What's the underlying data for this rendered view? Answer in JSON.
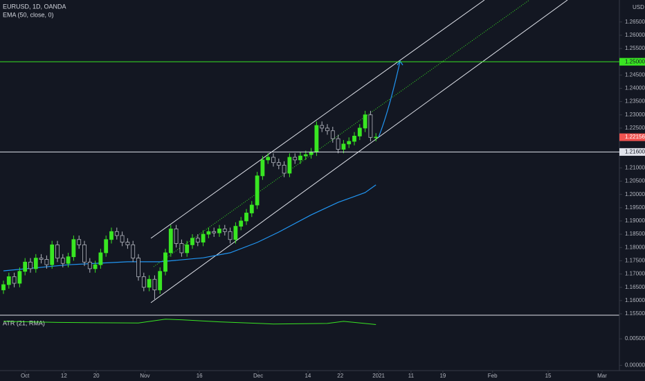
{
  "chart_data": {
    "type": "candlestick",
    "title": "EURUSD, 1D, OANDA",
    "currency": "USD",
    "up_color": "#39e622",
    "down_color": "#131722",
    "x": [
      0,
      1,
      2,
      3,
      4,
      5,
      6,
      7,
      8,
      9,
      10,
      11,
      12,
      13,
      14,
      15,
      16,
      17,
      18,
      19,
      20,
      21,
      22,
      23,
      24,
      25,
      26,
      27,
      28,
      29,
      30,
      31,
      32,
      33,
      34,
      35,
      36,
      37,
      38,
      39,
      40,
      41,
      42,
      43,
      44,
      45,
      46,
      47,
      48,
      49,
      50,
      51,
      52,
      53,
      54,
      55,
      56,
      57,
      58,
      59,
      60,
      61,
      62,
      63,
      64,
      65,
      66,
      67,
      68,
      69
    ],
    "open": [
      1.164,
      1.166,
      1.169,
      1.1665,
      1.171,
      1.1745,
      1.172,
      1.176,
      1.1755,
      1.1735,
      1.181,
      1.176,
      1.174,
      1.1765,
      1.183,
      1.181,
      1.1745,
      1.172,
      1.1735,
      1.178,
      1.183,
      1.186,
      1.1845,
      1.182,
      1.181,
      1.176,
      1.169,
      1.165,
      1.168,
      1.164,
      1.171,
      1.178,
      1.187,
      1.1815,
      1.178,
      1.181,
      1.1835,
      1.182,
      1.185,
      1.186,
      1.1855,
      1.187,
      1.186,
      1.183,
      1.188,
      1.19,
      1.193,
      1.196,
      1.207,
      1.213,
      1.214,
      1.212,
      1.211,
      1.208,
      1.214,
      1.213,
      1.2145,
      1.215,
      1.216,
      1.226,
      1.225,
      1.224,
      1.221,
      1.217,
      1.219,
      1.22,
      1.222,
      1.225,
      1.23,
      1.2215
    ],
    "high": [
      1.1675,
      1.1705,
      1.1705,
      1.1725,
      1.176,
      1.176,
      1.1775,
      1.1775,
      1.177,
      1.1825,
      1.1825,
      1.1775,
      1.178,
      1.1845,
      1.1845,
      1.1825,
      1.176,
      1.175,
      1.1795,
      1.1845,
      1.1875,
      1.1875,
      1.186,
      1.1835,
      1.1825,
      1.1775,
      1.1705,
      1.1695,
      1.1695,
      1.1725,
      1.1795,
      1.1885,
      1.1885,
      1.183,
      1.1825,
      1.185,
      1.185,
      1.1865,
      1.1875,
      1.1875,
      1.1885,
      1.1885,
      1.1875,
      1.1895,
      1.1915,
      1.1945,
      1.1975,
      1.2085,
      1.2145,
      1.2155,
      1.2155,
      1.2135,
      1.2125,
      1.2155,
      1.2155,
      1.216,
      1.2165,
      1.2175,
      1.2275,
      1.2275,
      1.2265,
      1.2255,
      1.2225,
      1.2205,
      1.2215,
      1.2235,
      1.2265,
      1.2315,
      1.2315,
      1.2231
    ],
    "low": [
      1.1625,
      1.1645,
      1.165,
      1.165,
      1.1695,
      1.1705,
      1.1705,
      1.174,
      1.172,
      1.172,
      1.1745,
      1.1725,
      1.1725,
      1.175,
      1.1795,
      1.173,
      1.1705,
      1.1705,
      1.172,
      1.1765,
      1.1815,
      1.183,
      1.1805,
      1.1795,
      1.1745,
      1.1675,
      1.1635,
      1.1635,
      1.1605,
      1.1625,
      1.1695,
      1.1765,
      1.18,
      1.1765,
      1.1765,
      1.1795,
      1.1805,
      1.1805,
      1.1835,
      1.184,
      1.184,
      1.1845,
      1.1815,
      1.1815,
      1.1865,
      1.1885,
      1.1915,
      1.1945,
      1.2055,
      1.2115,
      1.2105,
      1.2095,
      1.2065,
      1.2065,
      1.2115,
      1.2115,
      1.213,
      1.2135,
      1.2145,
      1.2235,
      1.2225,
      1.2195,
      1.2155,
      1.2155,
      1.2175,
      1.2185,
      1.2205,
      1.2235,
      1.22,
      1.22
    ],
    "close": [
      1.166,
      1.169,
      1.1665,
      1.171,
      1.1745,
      1.172,
      1.176,
      1.1755,
      1.1735,
      1.181,
      1.176,
      1.174,
      1.1765,
      1.183,
      1.181,
      1.1745,
      1.172,
      1.1735,
      1.178,
      1.183,
      1.186,
      1.1845,
      1.182,
      1.181,
      1.176,
      1.169,
      1.165,
      1.168,
      1.164,
      1.171,
      1.178,
      1.187,
      1.1815,
      1.178,
      1.181,
      1.1835,
      1.182,
      1.185,
      1.186,
      1.1855,
      1.187,
      1.186,
      1.183,
      1.188,
      1.19,
      1.193,
      1.196,
      1.207,
      1.213,
      1.214,
      1.212,
      1.211,
      1.208,
      1.214,
      1.213,
      1.2145,
      1.215,
      1.216,
      1.226,
      1.225,
      1.224,
      1.221,
      1.217,
      1.219,
      1.22,
      1.222,
      1.225,
      1.23,
      1.2215,
      1.2216
    ],
    "ema": {
      "name": "EMA (50, close, 0)",
      "color": "#2196f3",
      "x": [
        0,
        12,
        23,
        29,
        37,
        42,
        47,
        51,
        57,
        62,
        67,
        69
      ],
      "values": [
        1.1712,
        1.1735,
        1.1746,
        1.1746,
        1.1761,
        1.178,
        1.1819,
        1.1858,
        1.1923,
        1.197,
        1.2007,
        1.2036
      ]
    },
    "xlim": [
      -0.64,
      114.1
    ],
    "ylim": [
      1.15448,
      1.27328
    ],
    "yticks": [
      {
        "value": 1.155,
        "label": "1.15500"
      },
      {
        "value": 1.16,
        "label": "1.16000"
      },
      {
        "value": 1.165,
        "label": "1.16500"
      },
      {
        "value": 1.17,
        "label": "1.17000"
      },
      {
        "value": 1.175,
        "label": "1.17500"
      },
      {
        "value": 1.18,
        "label": "1.18000"
      },
      {
        "value": 1.185,
        "label": "1.18500"
      },
      {
        "value": 1.19,
        "label": "1.19000"
      },
      {
        "value": 1.195,
        "label": "1.19500"
      },
      {
        "value": 1.2,
        "label": "1.20000"
      },
      {
        "value": 1.205,
        "label": "1.20500"
      },
      {
        "value": 1.21,
        "label": "1.21000"
      },
      {
        "value": 1.225,
        "label": "1.22500"
      },
      {
        "value": 1.23,
        "label": "1.23000"
      },
      {
        "value": 1.235,
        "label": "1.23500"
      },
      {
        "value": 1.24,
        "label": "1.24000"
      },
      {
        "value": 1.245,
        "label": "1.24500"
      },
      {
        "value": 1.255,
        "label": "1.25500"
      },
      {
        "value": 1.26,
        "label": "1.26000"
      },
      {
        "value": 1.265,
        "label": "1.26500"
      }
    ],
    "xticks": [
      {
        "value": 4,
        "label": "Oct"
      },
      {
        "value": 11.2,
        "label": "12"
      },
      {
        "value": 17.2,
        "label": "20"
      },
      {
        "value": 26.2,
        "label": "Nov"
      },
      {
        "value": 36.3,
        "label": "16"
      },
      {
        "value": 47.2,
        "label": "Dec"
      },
      {
        "value": 56.4,
        "label": "14"
      },
      {
        "value": 62.4,
        "label": "22"
      },
      {
        "value": 69.5,
        "label": "2021"
      },
      {
        "value": 75.5,
        "label": "11"
      },
      {
        "value": 81.4,
        "label": "19"
      },
      {
        "value": 90.6,
        "label": "Feb"
      },
      {
        "value": 100.9,
        "label": "15"
      },
      {
        "value": 110.9,
        "label": "Mar"
      }
    ],
    "price_lines": [
      {
        "value": 1.25,
        "label": "1.25000",
        "color": "#39e622",
        "text_color": "#131722"
      },
      {
        "value": 1.216,
        "label": "1.21600",
        "color": "#e0e3eb",
        "text_color": "#131722"
      }
    ],
    "last_price": {
      "value": 1.22156,
      "label": "1.22156",
      "color": "#ef5350"
    },
    "atr": {
      "name": "ATR (21, RMA)",
      "color": "#39e622",
      "x": [
        0,
        10,
        25,
        30,
        33,
        40,
        50,
        60,
        63,
        69
      ],
      "values": [
        0.0083,
        0.0081,
        0.008,
        0.0087,
        0.0086,
        0.0082,
        0.0078,
        0.0079,
        0.0083,
        0.0077
      ],
      "ylim": [
        -0.001,
        0.0092
      ],
      "yticks": [
        {
          "value": 0.005,
          "label": "0.00500"
        },
        {
          "value": 0,
          "label": "0.00000"
        }
      ]
    }
  }
}
